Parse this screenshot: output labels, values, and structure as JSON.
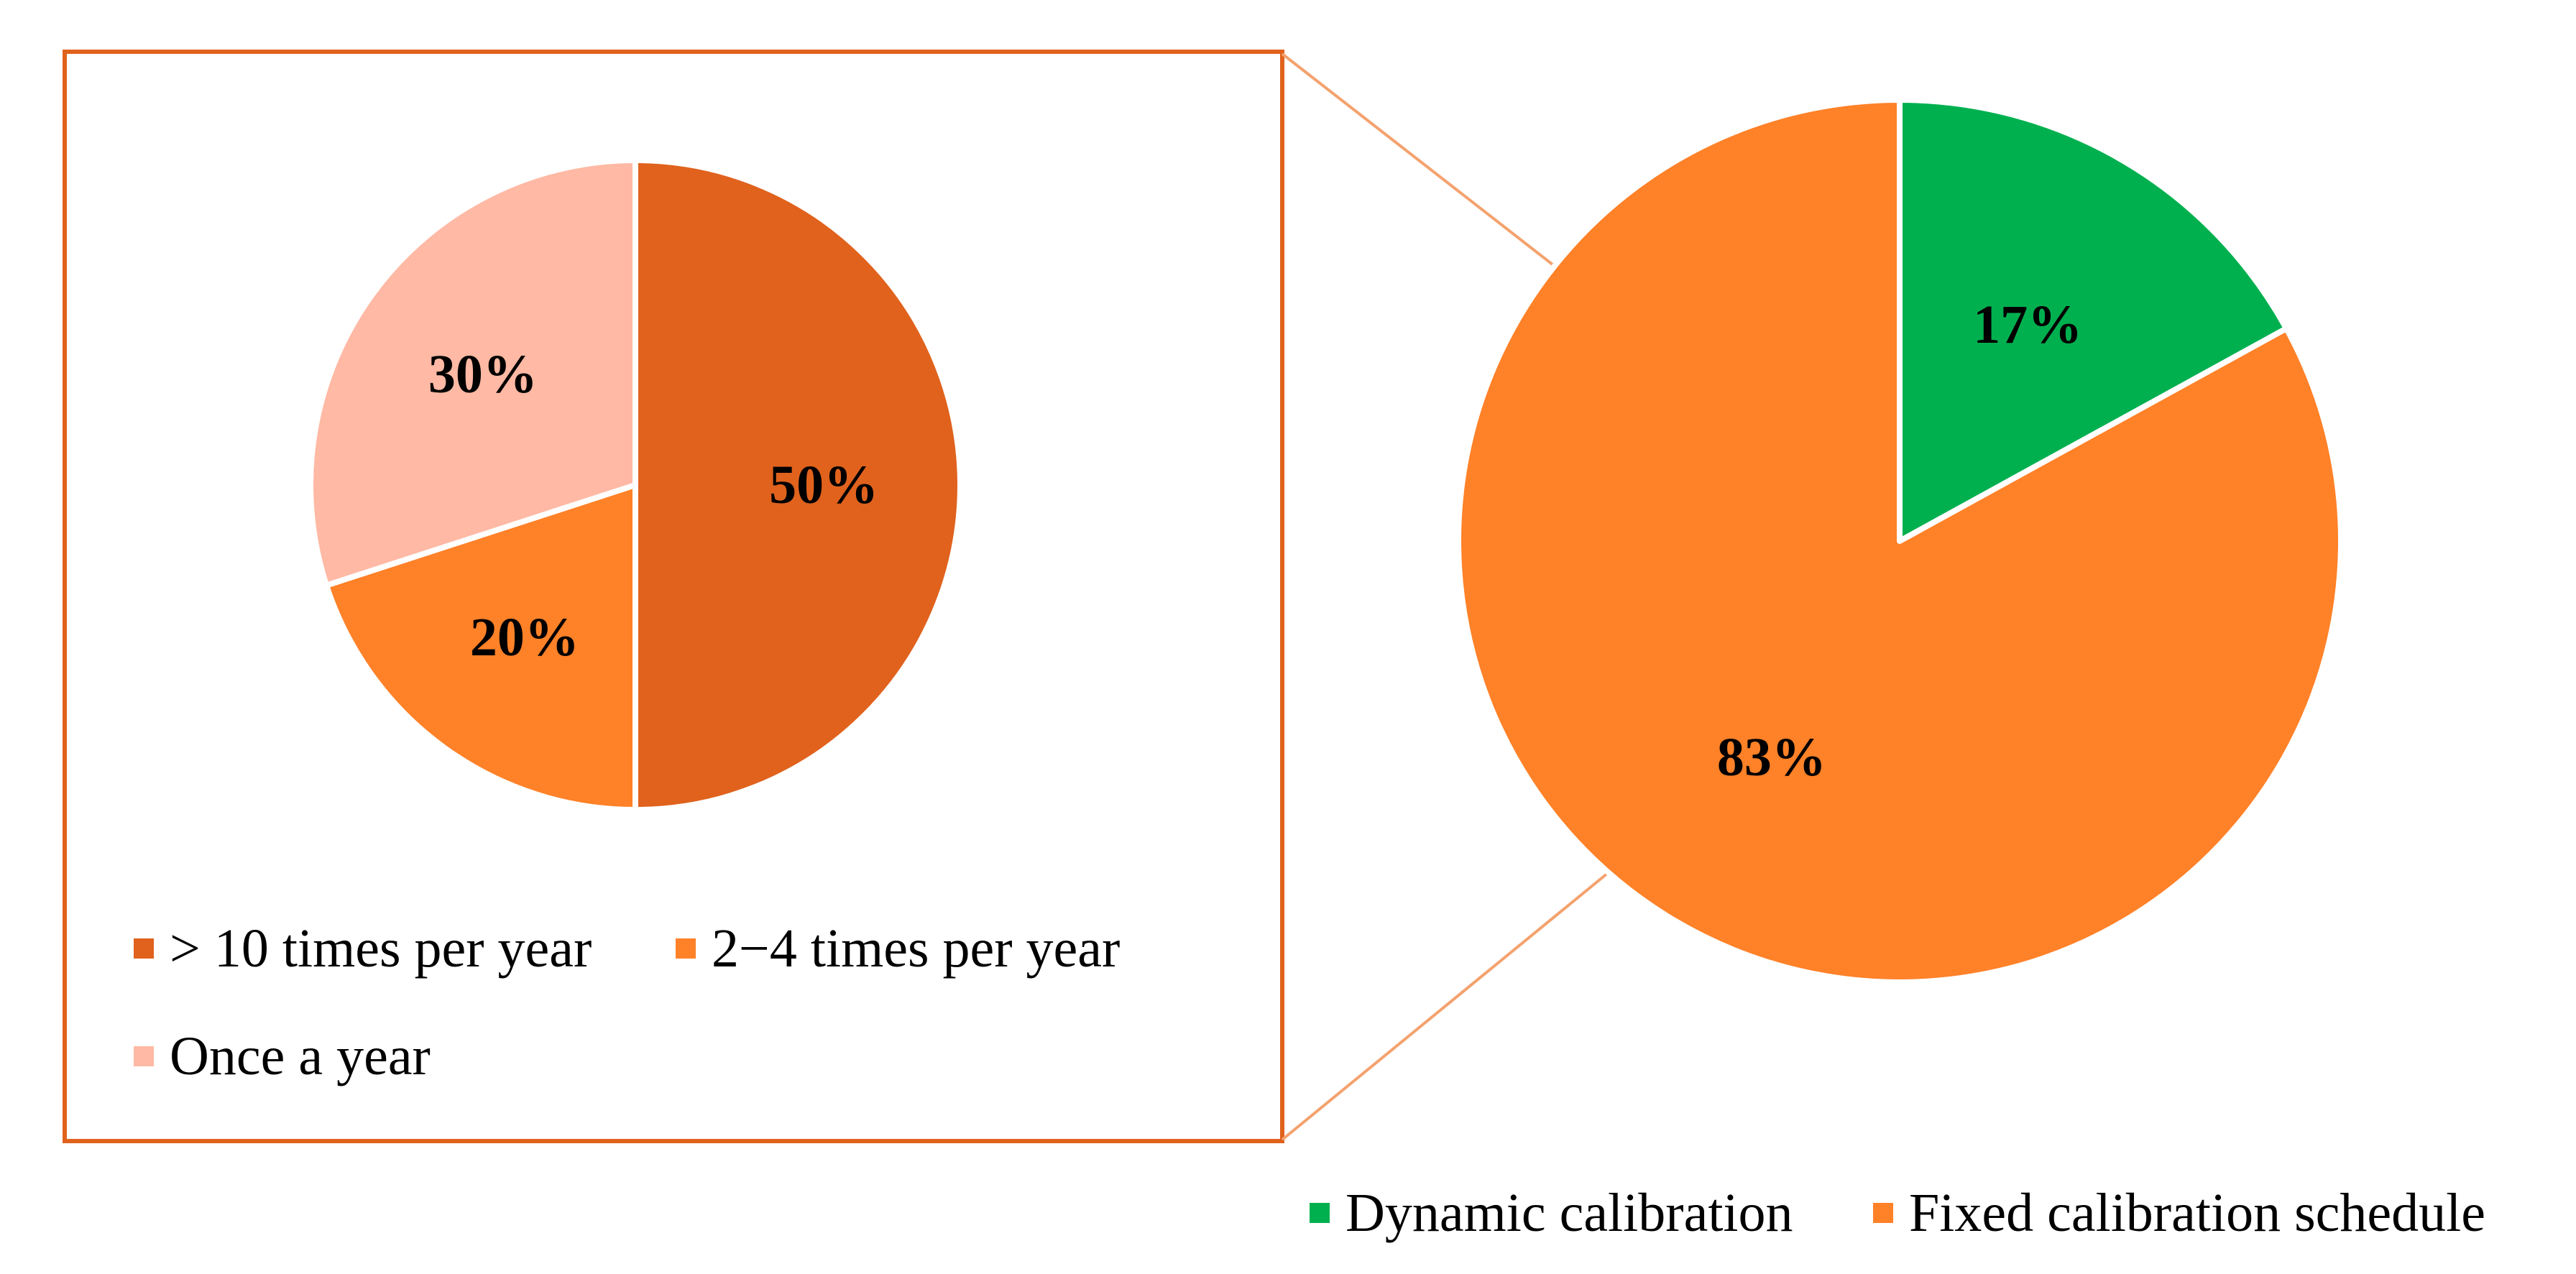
{
  "colors": {
    "frame": "#E0621D",
    "connector": "#F4A26E",
    "slice_border": "#FFFFFF"
  },
  "chart_data": [
    {
      "type": "pie",
      "title": "",
      "start_angle": 90,
      "direction": "clockwise",
      "slices": [
        {
          "label": "Dynamic calibration",
          "value": 17,
          "data_label": "17%",
          "color": "#00B04F"
        },
        {
          "label": "Fixed calibration schedule",
          "value": 83,
          "data_label": "83%",
          "color": "#FF8128"
        }
      ],
      "legend_position": "bottom-right"
    },
    {
      "type": "pie",
      "title": "",
      "start_angle": 90,
      "direction": "clockwise",
      "slices": [
        {
          "label": "> 10 times per year",
          "value": 50,
          "data_label": "50%",
          "color": "#E0621D"
        },
        {
          "label": "2−4 times per year",
          "value": 20,
          "data_label": "20%",
          "color": "#FF8128"
        },
        {
          "label": "Once a year",
          "value": 30,
          "data_label": "30%",
          "color": "#FFB9A4"
        }
      ],
      "legend_position": "bottom"
    }
  ]
}
